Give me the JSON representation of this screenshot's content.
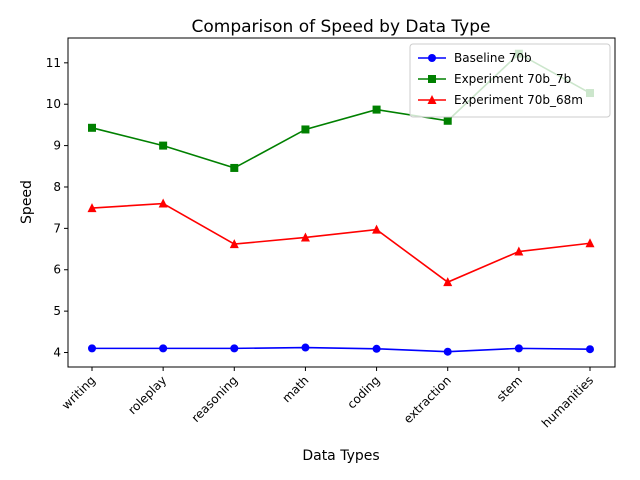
{
  "chart_data": {
    "type": "line",
    "title": "Comparison of Speed by Data Type",
    "xlabel": "Data Types",
    "ylabel": "Speed",
    "categories": [
      "writing",
      "roleplay",
      "reasoning",
      "math",
      "coding",
      "extraction",
      "stem",
      "humanities"
    ],
    "ylim": [
      3.65,
      11.6
    ],
    "yticks": [
      4,
      5,
      6,
      7,
      8,
      9,
      10,
      11
    ],
    "grid": false,
    "legend_position": "top-right",
    "series": [
      {
        "name": "Baseline 70b",
        "color": "#0000ff",
        "marker": "circle",
        "values": [
          4.1,
          4.1,
          4.1,
          4.12,
          4.09,
          4.02,
          4.1,
          4.08
        ]
      },
      {
        "name": "Experiment 70b_7b",
        "color": "#008000",
        "marker": "square",
        "values": [
          9.43,
          9.0,
          8.46,
          9.39,
          9.87,
          9.6,
          11.22,
          10.27
        ]
      },
      {
        "name": "Experiment 70b_68m",
        "color": "#ff0000",
        "marker": "triangle",
        "values": [
          7.49,
          7.6,
          6.62,
          6.78,
          6.97,
          5.7,
          6.44,
          6.64
        ]
      }
    ]
  }
}
